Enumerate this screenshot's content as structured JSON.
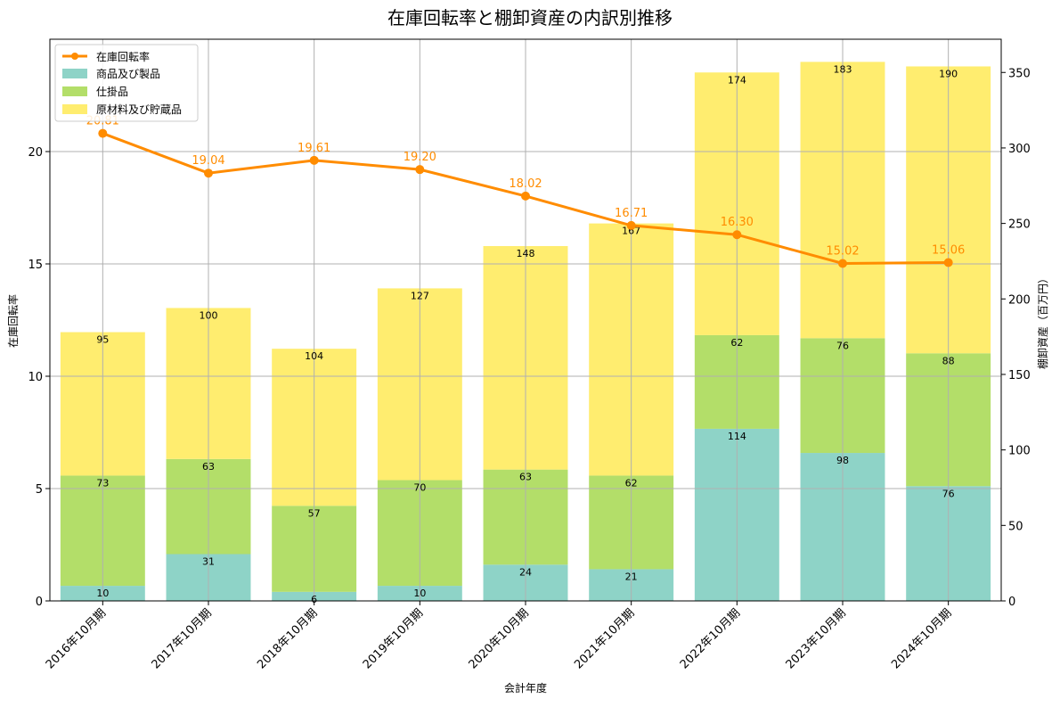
{
  "colors": {
    "merchandise": "#8ed3c7",
    "wip": "#b3de69",
    "raw": "#ffed6f",
    "line": "#ff8c00",
    "grid": "#b0b0b0",
    "axis": "#000000"
  },
  "chart_data": {
    "type": "bar",
    "title": "在庫回転率と棚卸資産の内訳別推移",
    "xlabel": "会計年度",
    "ylabel_left": "在庫回転率",
    "ylabel_right": "棚卸資産（百万円）",
    "ylim_left": [
      0,
      25
    ],
    "ylim_right": [
      0,
      372
    ],
    "yticks_left": [
      0,
      5,
      10,
      15,
      20
    ],
    "yticks_right": [
      0,
      50,
      100,
      150,
      200,
      250,
      300,
      350
    ],
    "grid": true,
    "legend_position": "top-left",
    "categories": [
      "2016年10月期",
      "2017年10月期",
      "2018年10月期",
      "2019年10月期",
      "2020年10月期",
      "2021年10月期",
      "2022年10月期",
      "2023年10月期",
      "2024年10月期"
    ],
    "stacked_series": [
      {
        "name": "商品及び製品",
        "values": [
          10,
          31,
          6,
          10,
          24,
          21,
          114,
          98,
          76
        ]
      },
      {
        "name": "仕掛品",
        "values": [
          73,
          63,
          57,
          70,
          63,
          62,
          62,
          76,
          88
        ]
      },
      {
        "name": "原材料及び貯蔵品",
        "values": [
          95,
          100,
          104,
          127,
          148,
          167,
          174,
          183,
          190
        ]
      }
    ],
    "line_series": {
      "name": "在庫回転率",
      "values": [
        20.81,
        19.04,
        19.61,
        19.2,
        18.02,
        16.71,
        16.3,
        15.02,
        15.06
      ],
      "labels": [
        "20.81",
        "19.04",
        "19.61",
        "19.20",
        "18.02",
        "16.71",
        "16.30",
        "15.02",
        "15.06"
      ]
    }
  }
}
